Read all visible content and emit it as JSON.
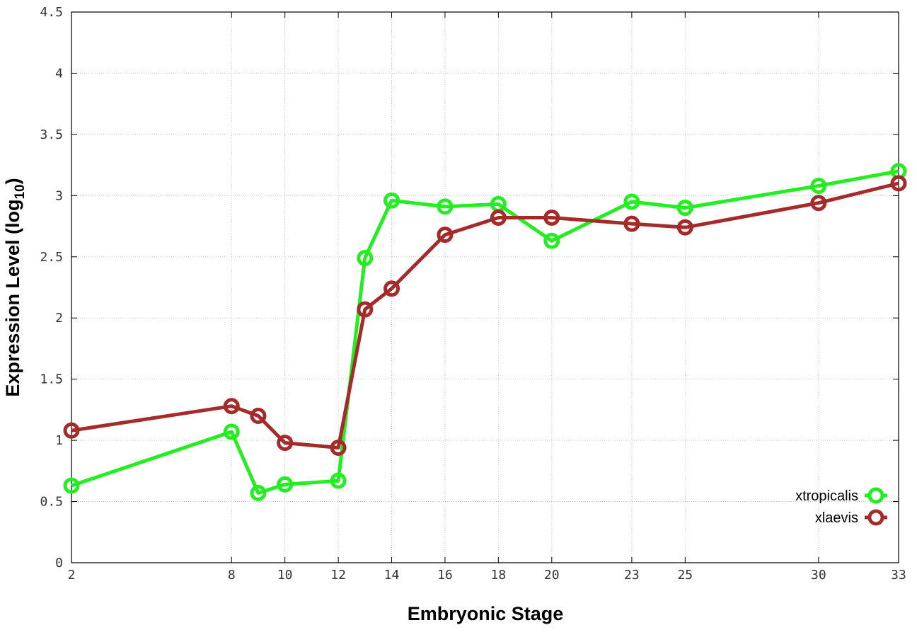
{
  "chart_data": {
    "type": "line",
    "xlabel": "Embryonic Stage",
    "ylabel_main": "Expression Level (log",
    "ylabel_sub": "10",
    "ylabel_close": ")",
    "xlim": [
      2,
      33
    ],
    "ylim": [
      0,
      4.5
    ],
    "x_ticks": [
      2,
      8,
      10,
      12,
      14,
      16,
      18,
      20,
      23,
      25,
      30,
      33
    ],
    "y_ticks": [
      0,
      0.5,
      1,
      1.5,
      2,
      2.5,
      3,
      3.5,
      4,
      4.5
    ],
    "y_tick_labels": [
      "0",
      "0.5",
      "1",
      "1.5",
      "2",
      "2.5",
      "3",
      "3.5",
      "4",
      "4.5"
    ],
    "grid": true,
    "legend_position": "bottom-right",
    "series": [
      {
        "name": "xtropicalis",
        "color": "#22ee22",
        "x": [
          2,
          8,
          9,
          10,
          12,
          13,
          14,
          16,
          18,
          20,
          23,
          25,
          30,
          33
        ],
        "y": [
          0.63,
          1.07,
          0.57,
          0.64,
          0.67,
          2.49,
          2.96,
          2.91,
          2.93,
          2.63,
          2.95,
          2.9,
          3.08,
          3.2
        ]
      },
      {
        "name": "xlaevis",
        "color": "#a52a2a",
        "x": [
          2,
          8,
          9,
          10,
          12,
          13,
          14,
          16,
          18,
          20,
          23,
          25,
          30,
          33
        ],
        "y": [
          1.08,
          1.28,
          1.2,
          0.98,
          0.94,
          2.07,
          2.24,
          2.68,
          2.82,
          2.82,
          2.77,
          2.74,
          2.94,
          3.1
        ]
      }
    ]
  }
}
